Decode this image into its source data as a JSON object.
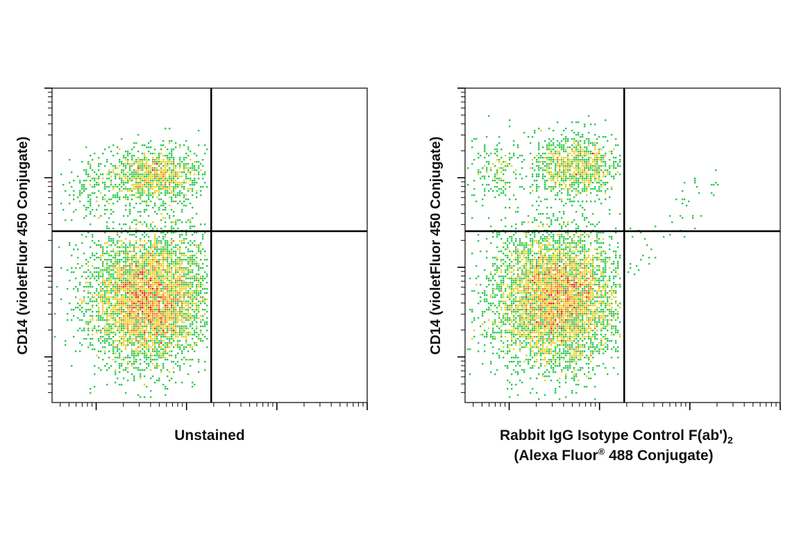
{
  "chart_data": [
    {
      "type": "scatter",
      "panel": "left",
      "style": "density-colored flow cytometry dot plot",
      "x_scale": "log",
      "y_scale": "log",
      "xlabel": "Unstained",
      "xlabel_line2": "",
      "ylabel": "CD14 (violetFluor 450 Conjugate)",
      "x_decades": 3,
      "y_decades": 3,
      "quadrant_gate": {
        "x_fraction": 0.505,
        "y_fraction": 0.545
      },
      "populations": [
        {
          "name": "",
          "quadrant": "lower-left",
          "cx": 0.31,
          "cy": 0.33,
          "sx": 0.095,
          "sy": 0.105,
          "count": 5200
        },
        {
          "name": "",
          "quadrant": "upper-left",
          "cx": 0.33,
          "cy": 0.72,
          "sx": 0.075,
          "sy": 0.045,
          "count": 1100
        },
        {
          "name": "",
          "quadrant": "upper-left",
          "cx": 0.13,
          "cy": 0.68,
          "sx": 0.045,
          "sy": 0.05,
          "count": 150
        }
      ],
      "scattered_right": 0
    },
    {
      "type": "scatter",
      "panel": "right",
      "style": "density-colored flow cytometry dot plot",
      "x_scale": "log",
      "y_scale": "log",
      "xlabel": "Rabbit IgG Isotype Control F(ab')",
      "xlabel_sub": "2",
      "xlabel_line2": "(Alexa Fluor",
      "xlabel_line2_sup": "®",
      "xlabel_line2_rest": " 488 Conjugate)",
      "ylabel": "CD14 (violetFluor 450 Conjugate)",
      "x_decades": 3,
      "y_decades": 3,
      "quadrant_gate": {
        "x_fraction": 0.505,
        "y_fraction": 0.545
      },
      "populations": [
        {
          "name": "",
          "quadrant": "lower-left",
          "cx": 0.29,
          "cy": 0.33,
          "sx": 0.1,
          "sy": 0.11,
          "count": 5400
        },
        {
          "name": "",
          "quadrant": "upper-left",
          "cx": 0.35,
          "cy": 0.75,
          "sx": 0.07,
          "sy": 0.05,
          "count": 1000
        },
        {
          "name": "",
          "quadrant": "upper-left",
          "cx": 0.1,
          "cy": 0.74,
          "sx": 0.05,
          "sy": 0.05,
          "count": 180
        }
      ],
      "scattered_right": 55
    }
  ],
  "density_colors": [
    "#1010d8",
    "#00b8d8",
    "#28c850",
    "#e8d018",
    "#f07818",
    "#e01818"
  ],
  "axis_color": "#000000"
}
